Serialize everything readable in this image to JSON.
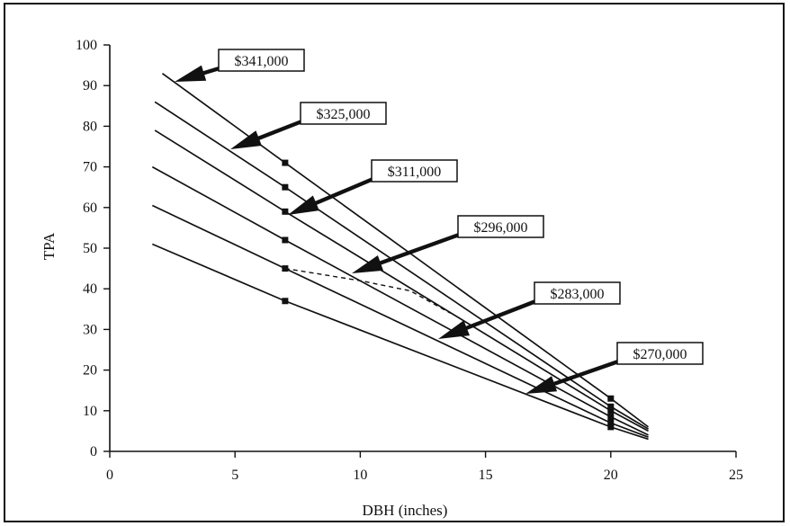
{
  "chart_data": {
    "type": "line",
    "xlabel": "DBH (inches)",
    "ylabel": "TPA",
    "xlim": [
      0,
      25
    ],
    "ylim": [
      0,
      100
    ],
    "xticks": [
      0,
      5,
      10,
      15,
      20,
      25
    ],
    "yticks": [
      0,
      10,
      20,
      30,
      40,
      50,
      60,
      70,
      80,
      90,
      100
    ],
    "grid": false,
    "series": [
      {
        "name": "$341,000",
        "points": [
          [
            2.1,
            93
          ],
          [
            7.0,
            71
          ],
          [
            20.0,
            13
          ],
          [
            21.5,
            6
          ]
        ]
      },
      {
        "name": "$325,000",
        "points": [
          [
            1.8,
            86
          ],
          [
            7.0,
            65
          ],
          [
            20.0,
            11
          ],
          [
            21.5,
            5.5
          ]
        ]
      },
      {
        "name": "$311,000",
        "points": [
          [
            1.8,
            79
          ],
          [
            7.0,
            59
          ],
          [
            20.0,
            10
          ],
          [
            21.5,
            5
          ]
        ]
      },
      {
        "name": "$296,000",
        "points": [
          [
            1.7,
            70
          ],
          [
            7.0,
            52
          ],
          [
            20.0,
            8.5
          ],
          [
            21.5,
            4
          ]
        ]
      },
      {
        "name": "$283,000",
        "points": [
          [
            1.7,
            60.5
          ],
          [
            7.0,
            45
          ],
          [
            20.0,
            7
          ],
          [
            21.5,
            3.5
          ]
        ]
      },
      {
        "name": "$270,000",
        "points": [
          [
            1.7,
            51
          ],
          [
            7.0,
            37
          ],
          [
            20.0,
            6
          ],
          [
            21.5,
            3
          ]
        ]
      }
    ],
    "dashed_line": [
      [
        7.0,
        45
      ],
      [
        10.0,
        42
      ],
      [
        12.0,
        39.5
      ],
      [
        13.6,
        34
      ]
    ],
    "callouts": [
      {
        "label": "$341,000"
      },
      {
        "label": "$325,000"
      },
      {
        "label": "$311,000"
      },
      {
        "label": "$296,000"
      },
      {
        "label": "$283,000"
      },
      {
        "label": "$270,000"
      }
    ]
  }
}
